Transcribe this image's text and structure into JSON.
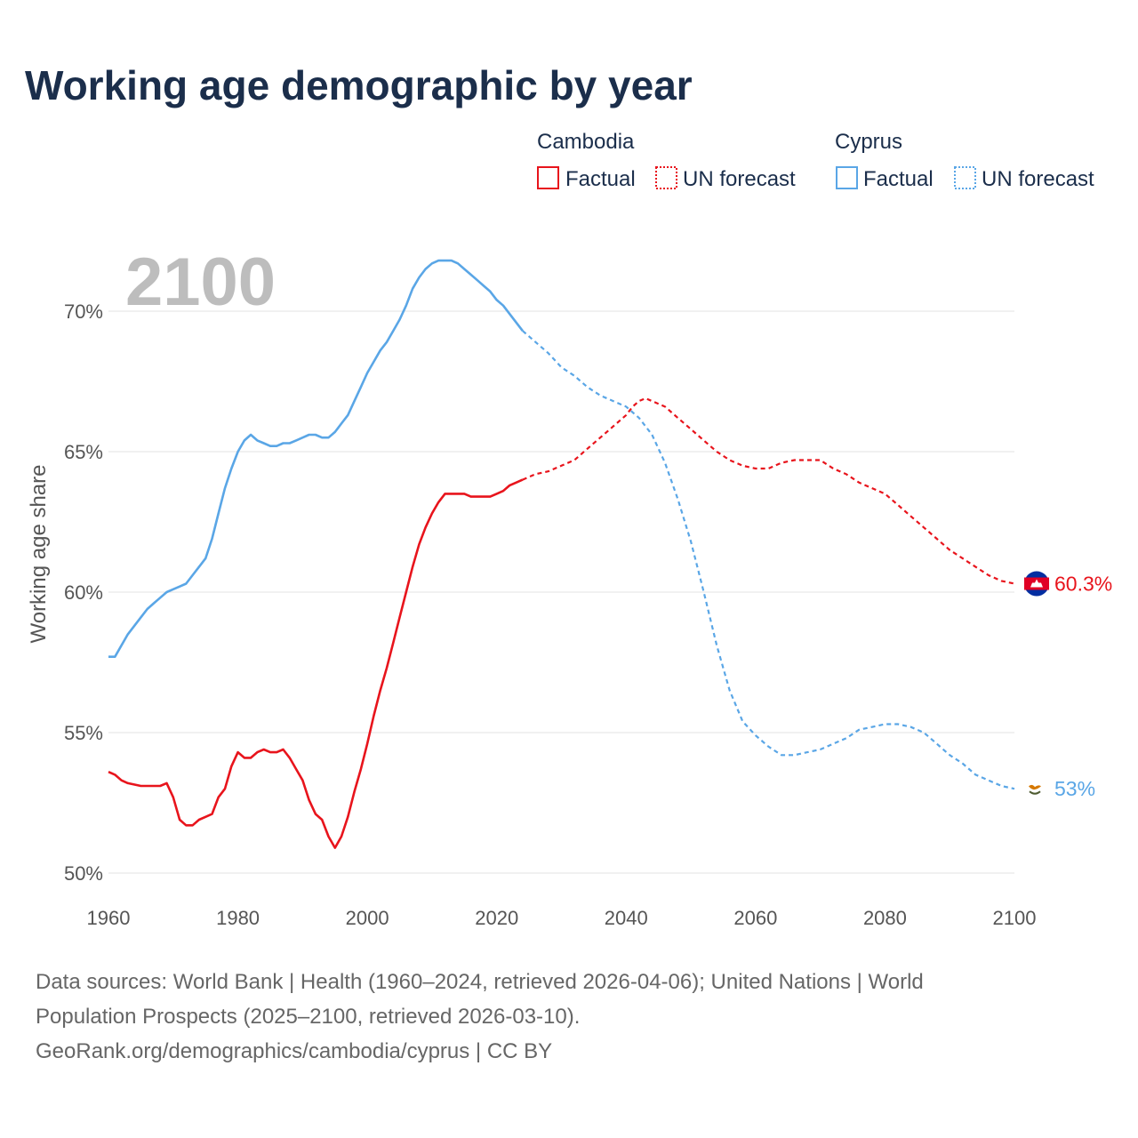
{
  "chart_data": {
    "type": "line",
    "title": "Working age demographic by year",
    "ylabel": "Working age share",
    "xlabel": "",
    "xlim": [
      1960,
      2100
    ],
    "ylim": [
      50,
      72
    ],
    "yticks": [
      50,
      55,
      60,
      65,
      70
    ],
    "ytick_labels": [
      "50%",
      "55%",
      "60%",
      "65%",
      "70%"
    ],
    "xticks": [
      1960,
      1980,
      2000,
      2020,
      2040,
      2060,
      2080,
      2100
    ],
    "xtick_labels": [
      "1960",
      "1980",
      "2000",
      "2020",
      "2040",
      "2060",
      "2080",
      "2100"
    ],
    "year_display": "2100",
    "grid": true,
    "legend": {
      "placement": "top-right",
      "groups": [
        {
          "country": "Cambodia",
          "factual_label": "Factual",
          "forecast_label": "UN forecast",
          "color": "#e8141c"
        },
        {
          "country": "Cyprus",
          "factual_label": "Factual",
          "forecast_label": "UN forecast",
          "color": "#5aa6e6"
        }
      ]
    },
    "series": [
      {
        "name": "Cambodia",
        "color": "#e8141c",
        "end_label": "60.3%",
        "factual": {
          "x": [
            1960,
            1961,
            1962,
            1963,
            1965,
            1967,
            1968,
            1969,
            1970,
            1971,
            1972,
            1973,
            1974,
            1975,
            1976,
            1977,
            1978,
            1979,
            1980,
            1981,
            1982,
            1983,
            1984,
            1985,
            1986,
            1987,
            1988,
            1989,
            1990,
            1991,
            1992,
            1993,
            1994,
            1995,
            1996,
            1997,
            1998,
            1999,
            2000,
            2001,
            2002,
            2003,
            2004,
            2005,
            2006,
            2007,
            2008,
            2009,
            2010,
            2011,
            2012,
            2014,
            2015,
            2016,
            2018,
            2019,
            2020,
            2021,
            2022,
            2023,
            2024
          ],
          "y": [
            53.6,
            53.5,
            53.3,
            53.2,
            53.1,
            53.1,
            53.1,
            53.2,
            52.7,
            51.9,
            51.7,
            51.7,
            51.9,
            52.0,
            52.1,
            52.7,
            53.0,
            53.8,
            54.3,
            54.1,
            54.1,
            54.3,
            54.4,
            54.3,
            54.3,
            54.4,
            54.1,
            53.7,
            53.3,
            52.6,
            52.1,
            51.9,
            51.3,
            50.9,
            51.3,
            52.0,
            52.9,
            53.7,
            54.6,
            55.6,
            56.5,
            57.3,
            58.2,
            59.1,
            60.0,
            60.9,
            61.7,
            62.3,
            62.8,
            63.2,
            63.5,
            63.5,
            63.5,
            63.4,
            63.4,
            63.4,
            63.5,
            63.6,
            63.8,
            63.9,
            64.0
          ]
        },
        "forecast": {
          "x": [
            2024,
            2025,
            2026,
            2028,
            2030,
            2032,
            2034,
            2036,
            2038,
            2040,
            2041,
            2042,
            2043,
            2044,
            2046,
            2048,
            2050,
            2052,
            2054,
            2056,
            2058,
            2060,
            2062,
            2064,
            2066,
            2068,
            2070,
            2072,
            2074,
            2076,
            2078,
            2080,
            2082,
            2084,
            2086,
            2088,
            2090,
            2092,
            2094,
            2096,
            2098,
            2100
          ],
          "y": [
            64.0,
            64.1,
            64.2,
            64.3,
            64.5,
            64.7,
            65.1,
            65.5,
            65.9,
            66.3,
            66.6,
            66.8,
            66.9,
            66.8,
            66.6,
            66.2,
            65.8,
            65.4,
            65.0,
            64.7,
            64.5,
            64.4,
            64.4,
            64.6,
            64.7,
            64.7,
            64.7,
            64.4,
            64.2,
            63.9,
            63.7,
            63.5,
            63.1,
            62.7,
            62.3,
            61.9,
            61.5,
            61.2,
            60.9,
            60.6,
            60.4,
            60.3
          ]
        }
      },
      {
        "name": "Cyprus",
        "color": "#5aa6e6",
        "end_label": "53%",
        "factual": {
          "x": [
            1960,
            1961,
            1963,
            1965,
            1966,
            1967,
            1968,
            1969,
            1970,
            1971,
            1972,
            1973,
            1974,
            1975,
            1976,
            1977,
            1978,
            1979,
            1980,
            1981,
            1982,
            1983,
            1984,
            1985,
            1986,
            1987,
            1988,
            1989,
            1990,
            1991,
            1992,
            1993,
            1994,
            1995,
            1996,
            1997,
            1998,
            1999,
            2000,
            2001,
            2002,
            2003,
            2004,
            2005,
            2006,
            2007,
            2008,
            2009,
            2010,
            2011,
            2012,
            2013,
            2014,
            2015,
            2016,
            2017,
            2018,
            2019,
            2020,
            2021,
            2022,
            2023,
            2024
          ],
          "y": [
            57.7,
            57.7,
            58.5,
            59.1,
            59.4,
            59.6,
            59.8,
            60.0,
            60.1,
            60.2,
            60.3,
            60.6,
            60.9,
            61.2,
            61.9,
            62.8,
            63.7,
            64.4,
            65.0,
            65.4,
            65.6,
            65.4,
            65.3,
            65.2,
            65.2,
            65.3,
            65.3,
            65.4,
            65.5,
            65.6,
            65.6,
            65.5,
            65.5,
            65.7,
            66.0,
            66.3,
            66.8,
            67.3,
            67.8,
            68.2,
            68.6,
            68.9,
            69.3,
            69.7,
            70.2,
            70.8,
            71.2,
            71.5,
            71.7,
            71.8,
            71.8,
            71.8,
            71.7,
            71.5,
            71.3,
            71.1,
            70.9,
            70.7,
            70.4,
            70.2,
            69.9,
            69.6,
            69.3
          ]
        },
        "forecast": {
          "x": [
            2024,
            2025,
            2026,
            2028,
            2030,
            2032,
            2034,
            2036,
            2038,
            2040,
            2042,
            2044,
            2046,
            2048,
            2050,
            2052,
            2054,
            2056,
            2058,
            2060,
            2062,
            2064,
            2066,
            2068,
            2070,
            2072,
            2074,
            2076,
            2078,
            2080,
            2082,
            2084,
            2086,
            2088,
            2090,
            2092,
            2094,
            2096,
            2098,
            2100
          ],
          "y": [
            69.3,
            69.1,
            68.9,
            68.5,
            68.0,
            67.7,
            67.3,
            67.0,
            66.8,
            66.6,
            66.2,
            65.6,
            64.6,
            63.3,
            61.8,
            60.0,
            58.1,
            56.5,
            55.4,
            54.9,
            54.5,
            54.2,
            54.2,
            54.3,
            54.4,
            54.6,
            54.8,
            55.1,
            55.2,
            55.3,
            55.3,
            55.2,
            55.0,
            54.6,
            54.2,
            53.9,
            53.5,
            53.3,
            53.1,
            53.0
          ]
        }
      }
    ]
  },
  "footer": {
    "line1": "Data sources: World Bank | Health (1960–2024, retrieved 2026-04-06); United Nations | World",
    "line2": "Population Prospects (2025–2100, retrieved 2026-03-10).",
    "line3": "GeoRank.org/demographics/cambodia/cyprus | CC BY"
  },
  "flags": {
    "cambodia": {
      "colors": [
        "#032ea1",
        "#e00025",
        "#ffffff"
      ],
      "icon": "cambodia-flag-icon"
    },
    "cyprus": {
      "colors": [
        "#ffffff",
        "#d57800",
        "#4e5b31"
      ],
      "icon": "cyprus-flag-icon"
    }
  }
}
